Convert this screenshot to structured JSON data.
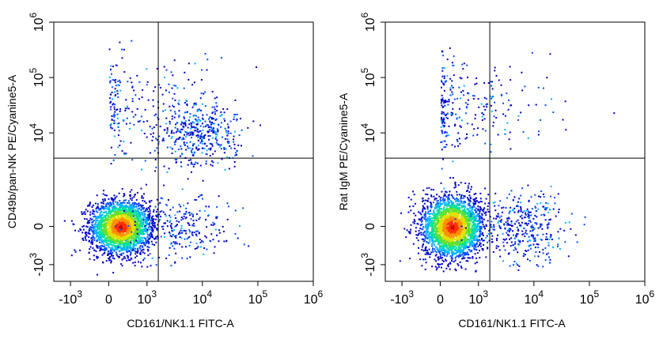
{
  "chart_data": [
    {
      "type": "scatter",
      "xlabel": "CD161/NK1.1 FITC-A",
      "ylabel": "CD49b/pan-NK PE/Cyanine5-A",
      "x_scale": "biexponential",
      "y_scale": "biexponential",
      "xlim": [
        -2000,
        1000000
      ],
      "ylim": [
        -2000,
        1000000
      ],
      "x_ticks": [
        {
          "value": -1000,
          "base": "-10",
          "exp": "3"
        },
        {
          "value": 0,
          "base": "0",
          "exp": ""
        },
        {
          "value": 1000,
          "base": "10",
          "exp": "3"
        },
        {
          "value": 10000,
          "base": "10",
          "exp": "4"
        },
        {
          "value": 100000,
          "base": "10",
          "exp": "5"
        },
        {
          "value": 1000000,
          "base": "10",
          "exp": "6"
        }
      ],
      "y_ticks": [
        {
          "value": -1000,
          "base": "-10",
          "exp": "3"
        },
        {
          "value": 0,
          "base": "0",
          "exp": ""
        },
        {
          "value": 10000,
          "base": "10",
          "exp": "4"
        },
        {
          "value": 100000,
          "base": "10",
          "exp": "5"
        },
        {
          "value": 1000000,
          "base": "10",
          "exp": "6"
        }
      ],
      "quadrant_gate": {
        "x": 1600,
        "y": 3500
      },
      "populations": [
        {
          "center": [
            300,
            0
          ],
          "spread": [
            400,
            350
          ],
          "density": "high"
        },
        {
          "center": [
            8000,
            9000
          ],
          "spread": [
            0.35,
            0.3
          ],
          "density": "medium"
        },
        {
          "center": [
            1000,
            30000
          ],
          "spread": [
            0.8,
            0.45
          ],
          "density": "low"
        },
        {
          "center": [
            4000,
            0
          ],
          "spread": [
            0.45,
            400
          ],
          "density": "low"
        }
      ],
      "grid": false,
      "legend": "none"
    },
    {
      "type": "scatter",
      "xlabel": "CD161/NK1.1 FITC-A",
      "ylabel": "Rat IgM PE/Cyanine5-A",
      "x_scale": "biexponential",
      "y_scale": "biexponential",
      "xlim": [
        -2000,
        1000000
      ],
      "ylim": [
        -2000,
        1000000
      ],
      "x_ticks": [
        {
          "value": -1000,
          "base": "-10",
          "exp": "3"
        },
        {
          "value": 0,
          "base": "0",
          "exp": ""
        },
        {
          "value": 1000,
          "base": "10",
          "exp": "3"
        },
        {
          "value": 10000,
          "base": "10",
          "exp": "4"
        },
        {
          "value": 100000,
          "base": "10",
          "exp": "5"
        },
        {
          "value": 1000000,
          "base": "10",
          "exp": "6"
        }
      ],
      "y_ticks": [
        {
          "value": -1000,
          "base": "-10",
          "exp": "3"
        },
        {
          "value": 0,
          "base": "0",
          "exp": ""
        },
        {
          "value": 10000,
          "base": "10",
          "exp": "4"
        },
        {
          "value": 100000,
          "base": "10",
          "exp": "5"
        },
        {
          "value": 1000000,
          "base": "10",
          "exp": "6"
        }
      ],
      "quadrant_gate": {
        "x": 1600,
        "y": 3500
      },
      "populations": [
        {
          "center": [
            300,
            0
          ],
          "spread": [
            400,
            400
          ],
          "density": "high"
        },
        {
          "center": [
            6000,
            0
          ],
          "spread": [
            0.4,
            450
          ],
          "density": "medium"
        },
        {
          "center": [
            500,
            30000
          ],
          "spread": [
            0.8,
            0.45
          ],
          "density": "low"
        }
      ],
      "grid": false,
      "legend": "none"
    }
  ],
  "colors": {
    "density_scale": [
      "#0000c8",
      "#0050ff",
      "#00b4ff",
      "#00e0a0",
      "#60e030",
      "#e0e000",
      "#ff9000",
      "#ff3000",
      "#c80000"
    ],
    "axis": "#000000",
    "gate": "#000000"
  }
}
